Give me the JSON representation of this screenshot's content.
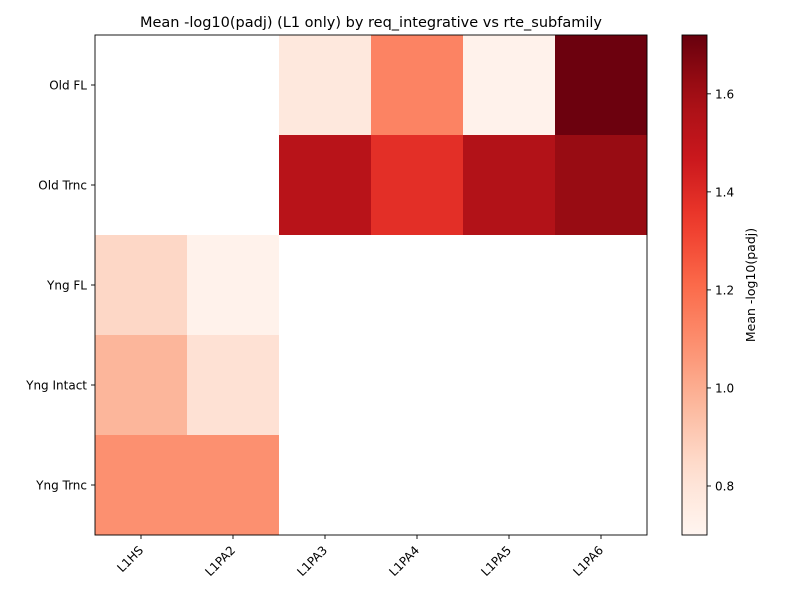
{
  "chart_data": {
    "type": "heatmap",
    "title": "Mean -log10(padj) (L1 only) by req_integrative vs rte_subfamily",
    "xlabel": "",
    "ylabel": "",
    "x_categories": [
      "L1HS",
      "L1PA2",
      "L1PA3",
      "L1PA4",
      "L1PA5",
      "L1PA6"
    ],
    "y_categories": [
      "Old FL",
      "Old Trnc",
      "Yng FL",
      "Yng Intact",
      "Yng Trnc"
    ],
    "values": [
      [
        null,
        null,
        0.78,
        1.13,
        0.72,
        1.71
      ],
      [
        null,
        null,
        1.53,
        1.38,
        1.55,
        1.62
      ],
      [
        0.86,
        0.72,
        null,
        null,
        null,
        null
      ],
      [
        0.97,
        0.82,
        null,
        null,
        null,
        null
      ],
      [
        1.09,
        1.09,
        null,
        null,
        null,
        null
      ]
    ],
    "colorbar": {
      "label": "Mean -log10(padj)",
      "min": 0.7,
      "max": 1.72,
      "ticks": [
        0.8,
        1.0,
        1.2,
        1.4,
        1.6
      ],
      "tick_labels": [
        "0.8",
        "1.0",
        "1.2",
        "1.4",
        "1.6"
      ],
      "colormap": "Reds"
    },
    "missing_color": "#ffffff",
    "grid": false
  }
}
